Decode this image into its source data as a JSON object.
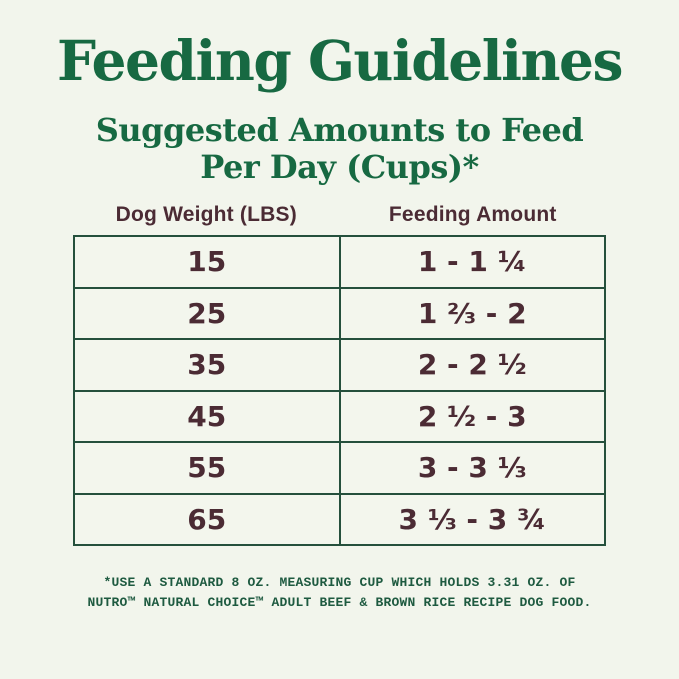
{
  "header": {
    "title": "Feeding Guidelines",
    "subtitle_line1": "Suggested Amounts to Feed",
    "subtitle_line2": "Per Day (Cups)*"
  },
  "table": {
    "columns": [
      "Dog Weight (LBS)",
      "Feeding Amount"
    ],
    "rows": [
      {
        "weight": "15",
        "amount": "1 - 1 ¼"
      },
      {
        "weight": "25",
        "amount": "1 ⅔ - 2"
      },
      {
        "weight": "35",
        "amount": "2 - 2 ½"
      },
      {
        "weight": "45",
        "amount": "2 ½ - 3"
      },
      {
        "weight": "55",
        "amount": "3 - 3 ⅓"
      },
      {
        "weight": "65",
        "amount": "3 ⅓ - 3 ¾"
      }
    ]
  },
  "footnote": {
    "line1": "*USE A STANDARD 8 OZ. MEASURING CUP WHICH HOLDS 3.31 OZ. OF",
    "line2": "NUTRO™ NATURAL CHOICE™ ADULT BEEF & BROWN RICE RECIPE DOG FOOD."
  },
  "colors": {
    "background": "#f2f5ec",
    "heading_green": "#176942",
    "table_border_green": "#25503c",
    "text_brown": "#4b2b34",
    "footnote_green": "#1e5a40"
  }
}
